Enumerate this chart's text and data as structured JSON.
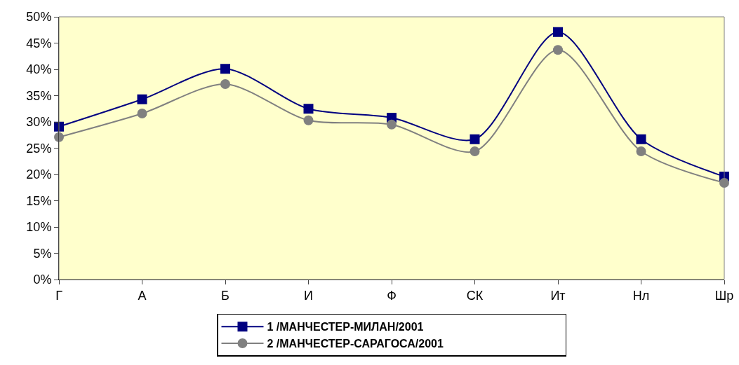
{
  "chart_data": {
    "type": "line",
    "categories": [
      "Г",
      "А",
      "Б",
      "И",
      "Ф",
      "СК",
      "Ит",
      "Нл",
      "Шр"
    ],
    "series": [
      {
        "name": "1 /МАНЧЕСТЕР-МИЛАН/2001",
        "color": "#000080",
        "marker": "square",
        "values": [
          29.1,
          34.3,
          40.1,
          32.5,
          30.8,
          26.7,
          47.1,
          26.7,
          19.6
        ]
      },
      {
        "name": "2 /МАНЧЕСТЕР-САРАГОСА/2001",
        "color": "#808080",
        "marker": "circle",
        "values": [
          27.1,
          31.6,
          37.2,
          30.3,
          29.5,
          24.4,
          43.7,
          24.4,
          18.4
        ]
      }
    ],
    "ylim": [
      0,
      50
    ],
    "yticks": [
      {
        "value": 0,
        "label": "0%"
      },
      {
        "value": 5,
        "label": "5%"
      },
      {
        "value": 10,
        "label": "10%"
      },
      {
        "value": 15,
        "label": "15%"
      },
      {
        "value": 20,
        "label": "20%"
      },
      {
        "value": 25,
        "label": "25%"
      },
      {
        "value": 30,
        "label": "30%"
      },
      {
        "value": 35,
        "label": "35%"
      },
      {
        "value": 40,
        "label": "40%"
      },
      {
        "value": 45,
        "label": "45%"
      },
      {
        "value": 50,
        "label": "50%"
      }
    ],
    "legend": "bottom",
    "line_style": "solid"
  }
}
